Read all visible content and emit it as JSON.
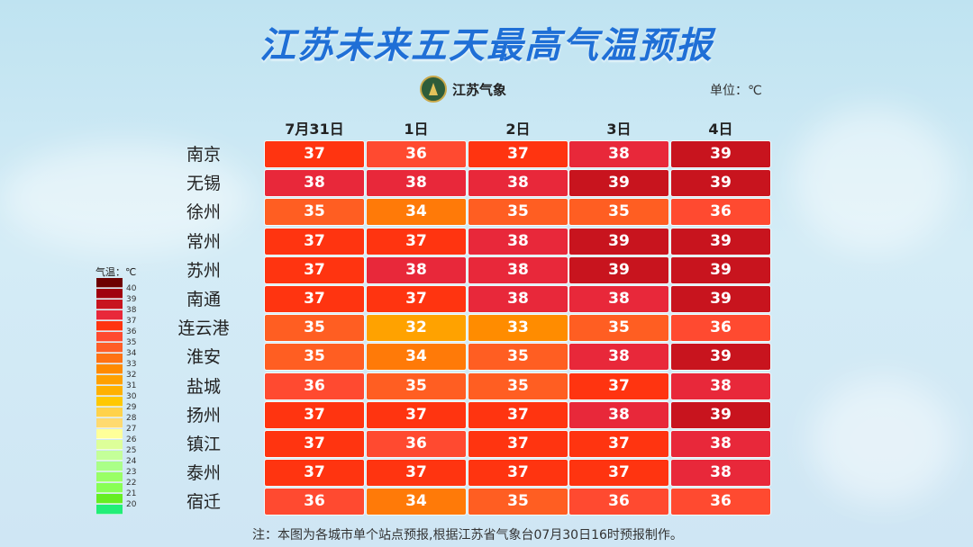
{
  "title": "江苏未来五天最高气温预报",
  "logo_text": "江苏气象",
  "unit": "单位：℃",
  "note": "注：本图为各城市单个站点预报,根据江苏省气象台07月30日16时预报制作。",
  "chart_data": {
    "type": "heatmap",
    "title": "江苏未来五天最高气温预报",
    "columns": [
      "7月31日",
      "1日",
      "2日",
      "3日",
      "4日"
    ],
    "rows": [
      "南京",
      "无锡",
      "徐州",
      "常州",
      "苏州",
      "南通",
      "连云港",
      "淮安",
      "盐城",
      "扬州",
      "镇江",
      "泰州",
      "宿迁"
    ],
    "values": [
      [
        37,
        36,
        37,
        38,
        39
      ],
      [
        38,
        38,
        38,
        39,
        39
      ],
      [
        35,
        34,
        35,
        35,
        36
      ],
      [
        37,
        37,
        38,
        39,
        39
      ],
      [
        37,
        38,
        38,
        39,
        39
      ],
      [
        37,
        37,
        38,
        38,
        39
      ],
      [
        35,
        32,
        33,
        35,
        36
      ],
      [
        35,
        34,
        35,
        38,
        39
      ],
      [
        36,
        35,
        35,
        37,
        38
      ],
      [
        37,
        37,
        37,
        38,
        39
      ],
      [
        37,
        36,
        37,
        37,
        38
      ],
      [
        37,
        37,
        37,
        37,
        38
      ],
      [
        36,
        34,
        35,
        36,
        36
      ]
    ],
    "legend": {
      "title": "气温：℃",
      "labels": [
        "40",
        "39",
        "38",
        "37",
        "36",
        "35",
        "34",
        "33",
        "32",
        "31",
        "30",
        "29",
        "28",
        "27",
        "26",
        "25",
        "24",
        "23",
        "22",
        "21",
        "20"
      ],
      "colors": [
        "#6e0000",
        "#a0000e",
        "#c8141e",
        "#e8283a",
        "#ff3410",
        "#ff4a30",
        "#ff5e28",
        "#ff7214",
        "#ff8a00",
        "#ffa000",
        "#ffb000",
        "#ffc800",
        "#ffd24a",
        "#ffda70",
        "#ffff99",
        "#ddff99",
        "#c4ff99",
        "#aaff88",
        "#99ff66",
        "#88ff55",
        "#66ee22",
        "#22ee77"
      ]
    },
    "cell_colors": {
      "32": "#ffa200",
      "33": "#ff8c00",
      "34": "#ff7a08",
      "35": "#ff5e22",
      "36": "#ff4a30",
      "37": "#ff3410",
      "38": "#e8283a",
      "39": "#c8141e"
    }
  }
}
